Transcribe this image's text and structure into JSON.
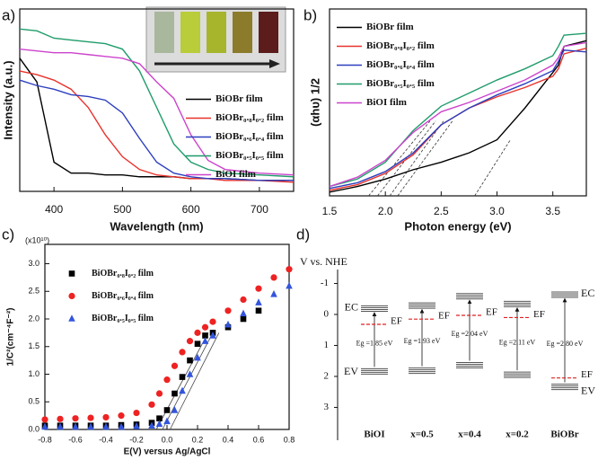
{
  "chart_data": [
    {
      "type": "line",
      "label": "a)",
      "xlabel": "Wavelength (nm)",
      "ylabel": "Intensity (a.u.)",
      "xlim": [
        350,
        750
      ],
      "ylim": [
        0,
        1
      ],
      "xticks": [
        400,
        500,
        600,
        700
      ],
      "legend": "lower right",
      "x": [
        350,
        375,
        400,
        425,
        450,
        475,
        500,
        525,
        550,
        575,
        600,
        625,
        650,
        700,
        750
      ],
      "series": [
        {
          "name": "BiOBr film",
          "color": "#000000",
          "values": [
            0.73,
            0.6,
            0.16,
            0.1,
            0.1,
            0.09,
            0.09,
            0.08,
            0.08,
            0.08,
            0.07,
            0.07,
            0.07,
            0.06,
            0.06
          ]
        },
        {
          "name": "BiOBr₀.₈I₀.₂ film",
          "color": "#e8322b",
          "values": [
            0.66,
            0.64,
            0.61,
            0.56,
            0.46,
            0.31,
            0.19,
            0.12,
            0.09,
            0.08,
            0.07,
            0.07,
            0.06,
            0.06,
            0.05
          ]
        },
        {
          "name": "BiOBr₀.₆I₀.₄ film",
          "color": "#2d3fbf",
          "values": [
            0.61,
            0.58,
            0.56,
            0.53,
            0.52,
            0.5,
            0.43,
            0.29,
            0.16,
            0.1,
            0.08,
            0.07,
            0.07,
            0.06,
            0.06
          ]
        },
        {
          "name": "BiOBr₀.₅I₀.₅ film",
          "color": "#1f9c6b",
          "values": [
            0.89,
            0.88,
            0.84,
            0.83,
            0.82,
            0.81,
            0.78,
            0.66,
            0.46,
            0.26,
            0.16,
            0.12,
            0.1,
            0.09,
            0.08
          ]
        },
        {
          "name": "BiOI film",
          "color": "#cc44cc",
          "values": [
            0.78,
            0.77,
            0.76,
            0.76,
            0.75,
            0.74,
            0.73,
            0.7,
            0.6,
            0.51,
            0.31,
            0.17,
            0.12,
            0.1,
            0.09
          ]
        }
      ]
    },
    {
      "type": "line",
      "label": "b)",
      "xlabel": "Photon energy (eV)",
      "ylabel": "(αhυ) 1/2",
      "xlim": [
        1.5,
        3.8
      ],
      "ylim": [
        0,
        1
      ],
      "legend": "upper left",
      "xticks": [
        {
          "value": 1.5,
          "label": "1.5"
        },
        {
          "value": 2,
          "label": "2.0"
        },
        {
          "value": 2.5,
          "label": "2.5"
        },
        {
          "value": 3,
          "label": "3.0"
        },
        {
          "value": 3.5,
          "label": "3.5"
        }
      ],
      "x": [
        1.5,
        1.75,
        2.0,
        2.25,
        2.5,
        2.75,
        3.0,
        3.25,
        3.5,
        3.55,
        3.6,
        3.8
      ],
      "series": [
        {
          "name": "BiOBr film",
          "color": "#000000",
          "values": [
            0.02,
            0.05,
            0.09,
            0.14,
            0.18,
            0.23,
            0.3,
            0.47,
            0.66,
            0.7,
            0.8,
            0.83
          ]
        },
        {
          "name": "BiOBr₀.₈I₀.₂ film",
          "color": "#e8322b",
          "values": [
            0.03,
            0.06,
            0.12,
            0.22,
            0.38,
            0.47,
            0.53,
            0.58,
            0.64,
            0.68,
            0.76,
            0.79
          ]
        },
        {
          "name": "BiOBr₀.₆I₀.₄ film",
          "color": "#2d3fbf",
          "values": [
            0.04,
            0.07,
            0.13,
            0.23,
            0.38,
            0.47,
            0.54,
            0.6,
            0.67,
            0.72,
            0.78,
            0.77
          ]
        },
        {
          "name": "BiOBr₀.₅I₀.₅ film",
          "color": "#1f9c6b",
          "values": [
            0.05,
            0.09,
            0.18,
            0.35,
            0.48,
            0.55,
            0.62,
            0.68,
            0.75,
            0.8,
            0.86,
            0.87
          ]
        },
        {
          "name": "BiOI film",
          "color": "#cc44cc",
          "values": [
            0.05,
            0.1,
            0.19,
            0.34,
            0.45,
            0.5,
            0.56,
            0.62,
            0.7,
            0.74,
            0.8,
            0.82
          ]
        }
      ],
      "tangents": [
        {
          "x": [
            1.85,
            2.4
          ],
          "y": [
            0,
            0.4
          ]
        },
        {
          "x": [
            1.93,
            2.45
          ],
          "y": [
            0,
            0.4
          ]
        },
        {
          "x": [
            2.04,
            2.52
          ],
          "y": [
            0,
            0.4
          ]
        },
        {
          "x": [
            2.11,
            2.6
          ],
          "y": [
            0,
            0.4
          ]
        },
        {
          "x": [
            2.8,
            3.12
          ],
          "y": [
            0,
            0.3
          ]
        }
      ]
    },
    {
      "type": "scatter",
      "label": "c)",
      "xlabel": "E(V) versus Ag/AgCl",
      "ylabel": "1/C²(cm⁻⁴F⁻²)",
      "multiplier": "(x10¹⁰)",
      "xlim": [
        -0.8,
        0.8
      ],
      "ylim": [
        0,
        3.35
      ],
      "legend": "upper left",
      "xticks": [
        {
          "value": -0.8,
          "label": "-0.8"
        },
        {
          "value": -0.6,
          "label": "-0.6"
        },
        {
          "value": -0.4,
          "label": "-0.4"
        },
        {
          "value": -0.2,
          "label": "-0.2"
        },
        {
          "value": 0,
          "label": "0.0"
        },
        {
          "value": 0.2,
          "label": "0.2"
        },
        {
          "value": 0.4,
          "label": "0.4"
        },
        {
          "value": 0.6,
          "label": "0.6"
        },
        {
          "value": 0.8,
          "label": "0.8"
        }
      ],
      "yticks": [
        {
          "value": 0,
          "label": "0.0"
        },
        {
          "value": 0.5,
          "label": "0.5"
        },
        {
          "value": 1,
          "label": "1.0"
        },
        {
          "value": 1.5,
          "label": "1.5"
        },
        {
          "value": 2,
          "label": "2.0"
        },
        {
          "value": 2.5,
          "label": "2.5"
        },
        {
          "value": 3,
          "label": "3.0"
        }
      ],
      "series": [
        {
          "name": "BiOBr₀.₈I₀.₂ film",
          "color": "#000000",
          "marker": "square",
          "x": [
            -0.8,
            -0.7,
            -0.6,
            -0.5,
            -0.4,
            -0.3,
            -0.2,
            -0.1,
            -0.05,
            0,
            0.05,
            0.1,
            0.15,
            0.2,
            0.25,
            0.3,
            0.4,
            0.5,
            0.6
          ],
          "values": [
            0.07,
            0.07,
            0.07,
            0.07,
            0.07,
            0.08,
            0.09,
            0.12,
            0.2,
            0.35,
            0.65,
            0.95,
            1.25,
            1.55,
            1.7,
            1.75,
            1.85,
            2.0,
            2.15
          ]
        },
        {
          "name": "BiOBr₀.₆I₀.₄ film",
          "color": "#ee2222",
          "marker": "circle",
          "x": [
            -0.8,
            -0.7,
            -0.6,
            -0.5,
            -0.4,
            -0.3,
            -0.2,
            -0.1,
            -0.05,
            0,
            0.05,
            0.1,
            0.15,
            0.2,
            0.25,
            0.3,
            0.4,
            0.5,
            0.6,
            0.7,
            0.8
          ],
          "values": [
            0.18,
            0.19,
            0.2,
            0.21,
            0.22,
            0.25,
            0.3,
            0.45,
            0.65,
            0.9,
            1.15,
            1.4,
            1.6,
            1.75,
            1.85,
            1.95,
            2.15,
            2.35,
            2.55,
            2.75,
            2.9
          ]
        },
        {
          "name": "BiOBr₀.₅I₀.₅ film",
          "color": "#3355dd",
          "marker": "triangle",
          "x": [
            -0.8,
            -0.7,
            -0.6,
            -0.5,
            -0.4,
            -0.3,
            -0.2,
            -0.1,
            -0.05,
            0,
            0.05,
            0.1,
            0.15,
            0.2,
            0.25,
            0.3,
            0.4,
            0.5,
            0.6,
            0.7,
            0.8
          ],
          "values": [
            0.05,
            0.05,
            0.05,
            0.05,
            0.05,
            0.05,
            0.06,
            0.07,
            0.1,
            0.15,
            0.35,
            0.7,
            1.0,
            1.3,
            1.6,
            1.7,
            1.9,
            2.1,
            2.3,
            2.45,
            2.6
          ]
        }
      ],
      "fit_lines": [
        {
          "x": [
            -0.07,
            0.27
          ],
          "y": [
            0,
            1.75
          ]
        },
        {
          "x": [
            -0.03,
            0.3
          ],
          "y": [
            0,
            1.75
          ]
        },
        {
          "x": [
            0.02,
            0.34
          ],
          "y": [
            0,
            1.75
          ]
        }
      ]
    },
    {
      "type": "band_diagram",
      "label": "d)",
      "ylabel": "V vs. NHE",
      "ylim": [
        -1.45,
        4.06
      ],
      "yticks": [
        -1,
        0,
        1,
        2,
        3
      ],
      "categories": [
        "BiOI",
        "x=0.5",
        "x=0.4",
        "x=0.2",
        "BiOBr"
      ],
      "cb": [
        -0.1,
        -0.2,
        -0.5,
        -0.25,
        -0.55
      ],
      "vb": [
        1.75,
        1.73,
        1.55,
        1.86,
        2.25
      ],
      "ef": [
        0.32,
        0.15,
        0.03,
        0.1,
        2.05
      ],
      "ef_color": "#dd2222",
      "eg_labels": [
        "Eg =1.85 eV",
        "Eg =1.93 eV",
        "Eg =2.04 eV",
        "Eg =2.11 eV",
        "Eg =2.80 eV"
      ],
      "ec_label": "EC",
      "ev_label": "EV",
      "ef_label": "EF"
    }
  ]
}
